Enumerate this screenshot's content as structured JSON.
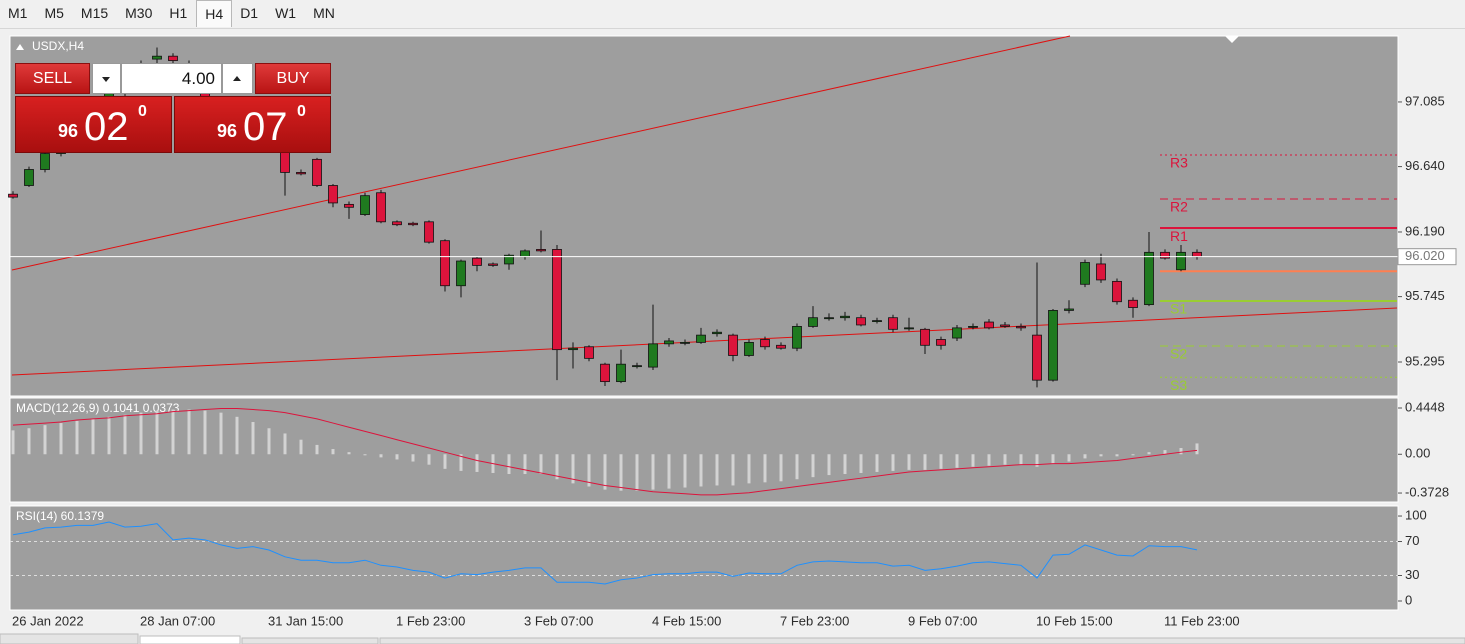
{
  "toolbar": {
    "timeframes": [
      "M1",
      "M5",
      "M15",
      "M30",
      "H1",
      "H4",
      "D1",
      "W1",
      "MN"
    ],
    "active": "H4"
  },
  "trade_panel": {
    "sell": "SELL",
    "buy": "BUY",
    "volume": "4.00",
    "bid": {
      "big": "96",
      "main": "02",
      "sup": "0"
    },
    "ask": {
      "big": "96",
      "main": "07",
      "sup": "0"
    }
  },
  "chart_data": [
    {
      "type": "candlestick",
      "title": "USDX,H4",
      "categories": [
        "26 Jan 2022",
        null,
        null,
        null,
        null,
        null,
        null,
        null,
        "28 Jan 07:00",
        null,
        null,
        null,
        null,
        null,
        null,
        null,
        "31 Jan 15:00",
        null,
        null,
        null,
        null,
        null,
        null,
        null,
        "1 Feb 23:00",
        null,
        null,
        null,
        null,
        null,
        null,
        null,
        "3 Feb 07:00",
        null,
        null,
        null,
        null,
        null,
        null,
        null,
        "4 Feb 15:00",
        null,
        null,
        null,
        null,
        null,
        null,
        null,
        "7 Feb 23:00",
        null,
        null,
        null,
        null,
        null,
        null,
        null,
        "9 Feb 07:00",
        null,
        null,
        null,
        null,
        null,
        null,
        null,
        "10 Feb 15:00",
        null,
        null,
        null,
        null,
        null,
        null,
        null,
        "11 Feb 23:00",
        null,
        null
      ],
      "open": [
        96.45,
        96.51,
        96.62,
        96.73,
        96.85,
        96.95,
        97.05,
        97.15,
        97.25,
        97.38,
        97.4,
        97.35,
        97.2,
        97.05,
        96.95,
        96.85,
        96.8,
        96.82,
        96.6,
        96.69,
        96.51,
        96.38,
        96.31,
        96.46,
        96.26,
        96.25,
        96.26,
        96.13,
        95.82,
        96.01,
        95.97,
        95.97,
        96.02,
        96.07,
        96.07,
        95.38,
        95.4,
        95.28,
        95.16,
        95.27,
        95.26,
        95.42,
        95.43,
        95.43,
        95.49,
        95.48,
        95.34,
        95.45,
        95.41,
        95.39,
        95.54,
        95.6,
        95.6,
        95.6,
        95.58,
        95.6,
        95.53,
        95.52,
        95.45,
        95.46,
        95.54,
        95.57,
        95.55,
        95.54,
        95.48,
        95.17,
        95.65,
        95.83,
        95.97,
        95.85,
        95.72,
        95.69,
        96.05,
        95.93,
        96.05
      ],
      "high": [
        96.47,
        96.64,
        96.75,
        96.87,
        96.97,
        97.07,
        97.17,
        97.27,
        97.37,
        97.46,
        97.42,
        97.37,
        97.22,
        97.08,
        96.98,
        96.88,
        96.84,
        96.83,
        96.62,
        96.7,
        96.52,
        96.4,
        96.46,
        96.48,
        96.27,
        96.26,
        96.27,
        96.14,
        96.0,
        96.02,
        95.98,
        96.04,
        96.07,
        96.2,
        96.1,
        95.43,
        95.41,
        95.29,
        95.38,
        95.29,
        95.69,
        95.46,
        95.45,
        95.53,
        95.52,
        95.49,
        95.45,
        95.47,
        95.43,
        95.56,
        95.68,
        95.63,
        95.64,
        95.62,
        95.6,
        95.62,
        95.6,
        95.53,
        95.47,
        95.55,
        95.56,
        95.59,
        95.57,
        95.56,
        95.98,
        95.66,
        95.72,
        96.0,
        96.04,
        95.87,
        95.74,
        96.19,
        96.07,
        96.1,
        96.07
      ],
      "low": [
        96.42,
        96.5,
        96.6,
        96.71,
        96.83,
        96.93,
        97.03,
        97.12,
        97.22,
        97.34,
        97.33,
        97.18,
        97.03,
        96.92,
        96.83,
        96.77,
        96.76,
        96.44,
        96.58,
        96.5,
        96.36,
        96.28,
        96.3,
        96.25,
        96.23,
        96.23,
        96.11,
        95.78,
        95.74,
        95.92,
        95.95,
        95.93,
        96.0,
        96.05,
        95.17,
        95.25,
        95.3,
        95.13,
        95.15,
        95.25,
        95.24,
        95.4,
        95.41,
        95.42,
        95.47,
        95.3,
        95.33,
        95.38,
        95.38,
        95.37,
        95.53,
        95.58,
        95.58,
        95.54,
        95.56,
        95.5,
        95.51,
        95.35,
        95.38,
        95.44,
        95.52,
        95.52,
        95.53,
        95.51,
        95.12,
        95.16,
        95.63,
        95.81,
        95.84,
        95.69,
        95.6,
        95.68,
        96.0,
        95.92,
        96.0
      ],
      "close": [
        96.43,
        96.62,
        96.73,
        96.85,
        96.95,
        97.05,
        97.15,
        97.25,
        97.35,
        97.4,
        97.37,
        97.2,
        97.05,
        96.95,
        96.85,
        96.8,
        96.82,
        96.6,
        96.59,
        96.51,
        96.39,
        96.36,
        96.44,
        96.26,
        96.24,
        96.24,
        96.12,
        95.82,
        95.99,
        95.96,
        95.96,
        96.03,
        96.06,
        96.06,
        95.38,
        95.39,
        95.32,
        95.16,
        95.28,
        95.27,
        95.42,
        95.44,
        95.43,
        95.48,
        95.5,
        95.34,
        95.43,
        95.4,
        95.39,
        95.54,
        95.6,
        95.6,
        95.61,
        95.55,
        95.58,
        95.52,
        95.53,
        95.41,
        95.41,
        95.53,
        95.54,
        95.53,
        95.54,
        95.53,
        95.17,
        95.65,
        95.66,
        95.98,
        95.86,
        95.71,
        95.67,
        96.05,
        96.01,
        96.05,
        96.02
      ],
      "up_color": "#1f7a1f",
      "down_color": "#dc143c",
      "ylim": [
        95.061,
        97.539
      ],
      "yticks": [
        97.085,
        {
          "value": 96.64,
          "label": "96.640"
        },
        {
          "value": 96.19,
          "label": "96.190"
        },
        95.745,
        95.295
      ],
      "current_price": {
        "value": 96.02,
        "label": "96.020"
      },
      "pivots": [
        {
          "label": "R3",
          "value": 96.72,
          "color": "#dc143c",
          "style": "dotted"
        },
        {
          "label": "R2",
          "value": 96.417,
          "color": "#dc143c",
          "style": "dashed"
        },
        {
          "label": "R1",
          "value": 96.217,
          "color": "#dc143c",
          "style": "solid"
        },
        {
          "value": 95.92,
          "color": "#ff7f50",
          "style": "solid"
        },
        {
          "label": "S1",
          "value": 95.715,
          "color": "#9acd32",
          "style": "solid"
        },
        {
          "label": "S2",
          "value": 95.405,
          "color": "#9acd32",
          "style": "dashed"
        },
        {
          "label": "S3",
          "value": 95.19,
          "color": "#9acd32",
          "style": "dotted"
        }
      ]
    },
    {
      "type": "macd",
      "title": "MACD(12,26,9) 0.1041 0.0373",
      "histogram": [
        0.23,
        0.25,
        0.28,
        0.3,
        0.32,
        0.34,
        0.36,
        0.38,
        0.4,
        0.42,
        0.43,
        0.43,
        0.42,
        0.4,
        0.36,
        0.31,
        0.25,
        0.2,
        0.14,
        0.09,
        0.05,
        0.02,
        -0.01,
        -0.03,
        -0.05,
        -0.07,
        -0.1,
        -0.14,
        -0.16,
        -0.17,
        -0.18,
        -0.19,
        -0.19,
        -0.19,
        -0.24,
        -0.28,
        -0.31,
        -0.34,
        -0.35,
        -0.35,
        -0.34,
        -0.33,
        -0.32,
        -0.31,
        -0.3,
        -0.3,
        -0.28,
        -0.27,
        -0.26,
        -0.24,
        -0.22,
        -0.2,
        -0.19,
        -0.18,
        -0.17,
        -0.16,
        -0.15,
        -0.15,
        -0.14,
        -0.13,
        -0.12,
        -0.11,
        -0.1,
        -0.1,
        -0.12,
        -0.09,
        -0.07,
        -0.04,
        -0.02,
        -0.02,
        -0.01,
        0.02,
        0.04,
        0.06,
        0.1041
      ],
      "signal": [
        0.28,
        0.29,
        0.3,
        0.31,
        0.33,
        0.34,
        0.35,
        0.37,
        0.38,
        0.39,
        0.41,
        0.42,
        0.43,
        0.44,
        0.44,
        0.43,
        0.42,
        0.4,
        0.37,
        0.34,
        0.3,
        0.26,
        0.22,
        0.18,
        0.14,
        0.1,
        0.06,
        0.02,
        -0.02,
        -0.06,
        -0.09,
        -0.12,
        -0.15,
        -0.18,
        -0.21,
        -0.24,
        -0.27,
        -0.3,
        -0.32,
        -0.34,
        -0.36,
        -0.37,
        -0.38,
        -0.39,
        -0.39,
        -0.38,
        -0.37,
        -0.35,
        -0.33,
        -0.31,
        -0.29,
        -0.27,
        -0.25,
        -0.23,
        -0.21,
        -0.19,
        -0.17,
        -0.16,
        -0.15,
        -0.14,
        -0.13,
        -0.12,
        -0.11,
        -0.1,
        -0.1,
        -0.09,
        -0.09,
        -0.08,
        -0.07,
        -0.06,
        -0.04,
        -0.02,
        0.0,
        0.02,
        0.0373
      ],
      "hist_color": "#d3d3d3",
      "signal_color": "#dc143c",
      "ylim": [
        -0.459,
        0.541
      ],
      "yticks": [
        0.4448,
        {
          "value": 0,
          "label": "0.00"
        },
        -0.3728
      ]
    },
    {
      "type": "line",
      "title": "RSI(14) 60.1379",
      "values": [
        78,
        81,
        86,
        87,
        89,
        89,
        93,
        87,
        88,
        91,
        72,
        74,
        72,
        66,
        62,
        64,
        60,
        52,
        48,
        48,
        45,
        45,
        48,
        42,
        40,
        36,
        34,
        27,
        32,
        31,
        34,
        36,
        39,
        39,
        22,
        22,
        22,
        20,
        25,
        27,
        31,
        32,
        32,
        34,
        34,
        29,
        33,
        32,
        32,
        42,
        46,
        47,
        46,
        45,
        45,
        41,
        42,
        36,
        38,
        41,
        45,
        46,
        44,
        42,
        27,
        54,
        55,
        66,
        60,
        54,
        53,
        65,
        64,
        64,
        60.1379
      ],
      "color": "#1e90ff",
      "ylim": [
        -10.6,
        111.8
      ],
      "yticks": [
        100,
        70,
        30,
        0
      ],
      "levels": [
        70,
        30
      ]
    }
  ]
}
